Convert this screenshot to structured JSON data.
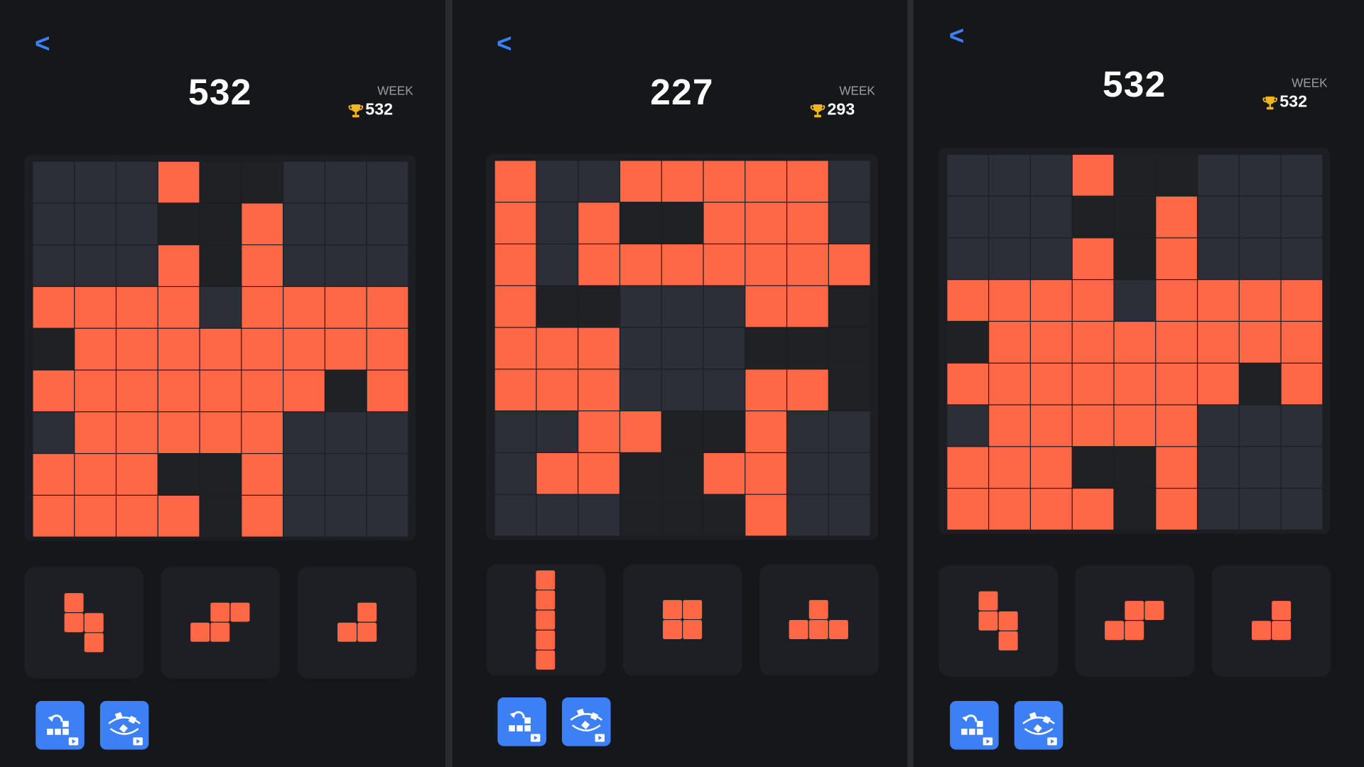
{
  "panels": [
    {
      "back": "<",
      "score": 532,
      "week_label": "WEEK",
      "best": 532
    },
    {
      "back": "<",
      "score": 227,
      "week_label": "WEEK",
      "best": 293
    },
    {
      "back": "<",
      "score": 532,
      "week_label": "WEEK",
      "best": 532
    }
  ]
}
